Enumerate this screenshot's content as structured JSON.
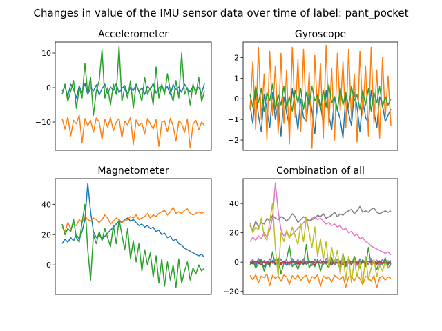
{
  "figure": {
    "title": "Changes in value of the IMU sensor data over time of label: pant_pocket"
  },
  "palette": [
    "#1f77b4",
    "#ff7f0e",
    "#2ca02c",
    "#d62728",
    "#9467bd",
    "#8c564b",
    "#e377c2",
    "#7f7f7f",
    "#bcbd22"
  ],
  "chart_data": [
    {
      "type": "line",
      "title": "Accelerometer",
      "xlabel": "",
      "ylabel": "",
      "x_ticks_visible": false,
      "ylim": [
        -18.2,
        13.2
      ],
      "yticks": [
        10,
        0,
        -10
      ],
      "grid": false,
      "series": [
        {
          "color": "#1f77b4",
          "values": [
            -1,
            0.2,
            -2.5,
            1,
            -0.5,
            -3,
            0.5,
            -1.5,
            1.2,
            -2,
            0,
            -1,
            0.8,
            -2.2,
            -0.3,
            1,
            -1.8,
            0.2,
            -0.8,
            1.1,
            -1.5,
            -0.2,
            0.6,
            -1.9,
            0.1,
            -0.9,
            1,
            -1.2,
            0,
            -2,
            0.4,
            -0.5,
            1.2,
            -1.6,
            -0.1,
            0.7,
            -1,
            0.3,
            -2.1,
            0.9,
            -0.6,
            0.2,
            -1.4,
            1,
            -0.4,
            -1.2,
            0.5,
            -0.8,
            0.1,
            -1.7,
            1.2
          ]
        },
        {
          "color": "#ff7f0e",
          "values": [
            -9,
            -12,
            -8.5,
            -14,
            -9.5,
            -10.5,
            -8,
            -16,
            -9,
            -11,
            -9.5,
            -13,
            -8.8,
            -10,
            -15,
            -9.2,
            -11.5,
            -8.7,
            -12.5,
            -10,
            -9,
            -14.5,
            -9.8,
            -10.8,
            -8.6,
            -16.5,
            -9.4,
            -11,
            -10.2,
            -13.5,
            -9,
            -10.5,
            -12,
            -9.3,
            -17,
            -10,
            -9.6,
            -12.8,
            -8.9,
            -11.2,
            -15.5,
            -9.7,
            -10.4,
            -13,
            -9.1,
            -17.5,
            -10.6,
            -9.5,
            -12.2,
            -10,
            -11
          ]
        },
        {
          "color": "#2ca02c",
          "values": [
            -2,
            1,
            -4,
            -1,
            2,
            -6,
            0,
            -3,
            7,
            -2,
            3,
            -8,
            -1,
            2,
            11,
            -3,
            0,
            -5,
            1,
            -2,
            12,
            -4,
            0,
            -3,
            2,
            -6,
            1,
            -1,
            -4,
            3,
            -2,
            0,
            -5,
            6,
            -3,
            1,
            -2,
            4,
            -1,
            -4,
            2,
            -3,
            10,
            -2,
            0,
            -5,
            1,
            -2,
            3,
            -4,
            -1
          ]
        }
      ]
    },
    {
      "type": "line",
      "title": "Gyroscope",
      "xlabel": "",
      "ylabel": "",
      "x_ticks_visible": false,
      "ylim": [
        -2.5,
        2.75
      ],
      "yticks": [
        2,
        1,
        0,
        -1,
        -2
      ],
      "grid": false,
      "series": [
        {
          "color": "#1f77b4",
          "values": [
            -0.3,
            -1.2,
            0.4,
            -0.8,
            -1.6,
            0.2,
            -0.5,
            -1.4,
            0.3,
            -1,
            -0.2,
            -1.8,
            0.1,
            -0.7,
            -1.3,
            0.5,
            -0.4,
            -1.5,
            0,
            -0.9,
            -1.1,
            0.3,
            -0.6,
            -1.7,
            0.2,
            -0.3,
            -1.2,
            0.4,
            -0.8,
            -1.5,
            0.1,
            -0.5,
            -1,
            -1.9,
            0.2,
            -0.7,
            -1.3,
            0.3,
            -0.4,
            -1.6,
            0,
            -0.9,
            -1.2,
            0.4,
            -0.6,
            -1.4,
            0.1,
            -0.3,
            -1.1,
            -0.8,
            -0.5
          ]
        },
        {
          "color": "#ff7f0e",
          "values": [
            -0.5,
            1.8,
            -1.5,
            2.5,
            -1,
            1.2,
            -2,
            2.3,
            -0.8,
            1.6,
            -1.7,
            2.2,
            -1.2,
            1.4,
            -2.2,
            2.5,
            -0.9,
            1.9,
            -1.6,
            2.4,
            -1.1,
            1.3,
            -2.4,
            2.1,
            -0.7,
            1.7,
            -1.9,
            2.6,
            -1.3,
            1.5,
            -2,
            2.2,
            -0.6,
            1.8,
            -1.4,
            2.4,
            -1,
            1.2,
            -2.1,
            2.3,
            -0.8,
            1.6,
            -1.8,
            2.5,
            -1.2,
            1.4,
            -1.9,
            2,
            -0.9,
            1.1,
            -1.3
          ]
        },
        {
          "color": "#2ca02c",
          "values": [
            0.2,
            -0.4,
            0.6,
            -0.2,
            0.5,
            -0.6,
            0.3,
            -0.1,
            0.7,
            -0.5,
            0.2,
            -0.3,
            0.6,
            -0.4,
            0.1,
            -0.6,
            0.4,
            -0.2,
            0.5,
            -0.5,
            0.3,
            -0.3,
            0.6,
            -0.1,
            0.2,
            -0.5,
            0.4,
            -0.4,
            0.7,
            -0.2,
            0.1,
            -0.6,
            0.5,
            -0.3,
            0.3,
            -0.4,
            0.6,
            -0.1,
            0.2,
            -0.5,
            0.4,
            -0.3,
            0.5,
            -0.6,
            0.3,
            -0.2,
            0.6,
            -0.4,
            0.1,
            -0.3,
            0
          ]
        }
      ]
    },
    {
      "type": "line",
      "title": "Magnetometer",
      "xlabel": "",
      "ylabel": "",
      "x_ticks_visible": false,
      "ylim": [
        -19.5,
        57
      ],
      "yticks": [
        40,
        20,
        0
      ],
      "grid": false,
      "series": [
        {
          "color": "#1f77b4",
          "values": [
            14,
            17,
            15,
            18,
            16,
            20,
            17,
            22,
            30,
            54,
            35,
            22,
            18,
            20,
            17,
            19,
            21,
            23,
            25,
            27,
            29,
            28,
            30,
            31,
            29,
            30,
            28,
            26,
            27,
            25,
            26,
            24,
            25,
            22,
            23,
            20,
            21,
            18,
            19,
            16,
            17,
            14,
            13,
            11,
            10,
            9,
            8,
            7,
            6,
            7,
            5
          ]
        },
        {
          "color": "#ff7f0e",
          "values": [
            25,
            22,
            28,
            24,
            27,
            26,
            30,
            28,
            32,
            30,
            29,
            31,
            30,
            28,
            30,
            33,
            31,
            27,
            29,
            31,
            30,
            28,
            29,
            30,
            32,
            31,
            33,
            30,
            31,
            32,
            34,
            31,
            33,
            32,
            34,
            35,
            36,
            33,
            35,
            38,
            34,
            35,
            34,
            36,
            37,
            34,
            33,
            34,
            35,
            34,
            35
          ]
        },
        {
          "color": "#2ca02c",
          "values": [
            27,
            20,
            24,
            22,
            30,
            18,
            15,
            28,
            40,
            10,
            -10,
            20,
            14,
            22,
            16,
            24,
            18,
            12,
            26,
            14,
            30,
            20,
            10,
            24,
            4,
            16,
            2,
            14,
            -4,
            10,
            0,
            8,
            -8,
            6,
            -12,
            4,
            -14,
            2,
            -10,
            0,
            -15,
            4,
            -12,
            -4,
            2,
            -10,
            -2,
            -6,
            0,
            -4,
            -2
          ]
        }
      ]
    },
    {
      "type": "line",
      "title": "Combination of all",
      "xlabel": "",
      "ylabel": "",
      "x_ticks_visible": false,
      "ylim": [
        -22,
        57
      ],
      "yticks": [
        40,
        20,
        0,
        -20
      ],
      "grid": false,
      "series": [
        {
          "color": "#1f77b4",
          "values": [
            -1,
            0.2,
            -2.5,
            1,
            -0.5,
            -3,
            0.5,
            -1.5,
            1.2,
            -2,
            0,
            -1,
            0.8,
            -2.2,
            -0.3,
            1,
            -1.8,
            0.2,
            -0.8,
            1.1,
            -1.5,
            -0.2,
            0.6,
            -1.9,
            0.1,
            -0.9,
            1,
            -1.2,
            0,
            -2,
            0.4,
            -0.5,
            1.2,
            -1.6,
            -0.1,
            0.7,
            -1,
            0.3,
            -2.1,
            0.9,
            -0.6,
            0.2,
            -1.4,
            1,
            -0.4,
            -1.2,
            0.5,
            -0.8,
            0.1,
            -1.7,
            1.2
          ]
        },
        {
          "color": "#ff7f0e",
          "values": [
            -9,
            -12,
            -8.5,
            -14,
            -9.5,
            -10.5,
            -8,
            -16,
            -9,
            -11,
            -9.5,
            -13,
            -8.8,
            -10,
            -15,
            -9.2,
            -11.5,
            -8.7,
            -12.5,
            -10,
            -9,
            -14.5,
            -9.8,
            -10.8,
            -8.6,
            -16.5,
            -9.4,
            -11,
            -10.2,
            -13.5,
            -9,
            -10.5,
            -12,
            -9.3,
            -17,
            -10,
            -9.6,
            -12.8,
            -8.9,
            -11.2,
            -15.5,
            -9.7,
            -10.4,
            -13,
            -9.1,
            -17.5,
            -10.6,
            -9.5,
            -12.2,
            -10,
            -11
          ]
        },
        {
          "color": "#2ca02c",
          "values": [
            -2,
            1,
            -4,
            -1,
            2,
            -6,
            0,
            -3,
            7,
            -2,
            3,
            -8,
            -1,
            2,
            11,
            -3,
            0,
            -5,
            1,
            -2,
            12,
            -4,
            0,
            -3,
            2,
            -6,
            1,
            -1,
            -4,
            3,
            -2,
            0,
            -5,
            6,
            -3,
            1,
            -2,
            4,
            -1,
            -4,
            2,
            -3,
            10,
            -2,
            0,
            -5,
            1,
            -2,
            3,
            -4,
            -1
          ]
        },
        {
          "color": "#d62728",
          "values": [
            -0.3,
            -1.2,
            0.4,
            -0.8,
            -1.6,
            0.2,
            -0.5,
            -1.4,
            0.3,
            -1,
            -0.2,
            -1.8,
            0.1,
            -0.7,
            -1.3,
            0.5,
            -0.4,
            -1.5,
            0,
            -0.9,
            -1.1,
            0.3,
            -0.6,
            -1.7,
            0.2,
            -0.3,
            -1.2,
            0.4,
            -0.8,
            -1.5,
            0.1,
            -0.5,
            -1,
            -1.9,
            0.2,
            -0.7,
            -1.3,
            0.3,
            -0.4,
            -1.6,
            0,
            -0.9,
            -1.2,
            0.4,
            -0.6,
            -1.4,
            0.1,
            -0.3,
            -1.1,
            -0.8,
            -0.5
          ]
        },
        {
          "color": "#9467bd",
          "values": [
            -0.5,
            1.8,
            -1.5,
            2.5,
            -1,
            1.2,
            -2,
            2.3,
            -0.8,
            1.6,
            -1.7,
            2.2,
            -1.2,
            1.4,
            -2.2,
            2.5,
            -0.9,
            1.9,
            -1.6,
            2.4,
            -1.1,
            1.3,
            -2.4,
            2.1,
            -0.7,
            1.7,
            -1.9,
            2.6,
            -1.3,
            1.5,
            -2,
            2.2,
            -0.6,
            1.8,
            -1.4,
            2.4,
            -1,
            1.2,
            -2.1,
            2.3,
            -0.8,
            1.6,
            -1.8,
            2.5,
            -1.2,
            1.4,
            -1.9,
            2,
            -0.9,
            1.1,
            -1.3
          ]
        },
        {
          "color": "#8c564b",
          "values": [
            0.2,
            -0.4,
            0.6,
            -0.2,
            0.5,
            -0.6,
            0.3,
            -0.1,
            0.7,
            -0.5,
            0.2,
            -0.3,
            0.6,
            -0.4,
            0.1,
            -0.6,
            0.4,
            -0.2,
            0.5,
            -0.5,
            0.3,
            -0.3,
            0.6,
            -0.1,
            0.2,
            -0.5,
            0.4,
            -0.4,
            0.7,
            -0.2,
            0.1,
            -0.6,
            0.5,
            -0.3,
            0.3,
            -0.4,
            0.6,
            -0.1,
            0.2,
            -0.5,
            0.4,
            -0.3,
            0.5,
            -0.6,
            0.3,
            -0.2,
            0.6,
            -0.4,
            0.1,
            -0.3,
            0
          ]
        },
        {
          "color": "#e377c2",
          "values": [
            14,
            17,
            15,
            18,
            16,
            20,
            17,
            22,
            30,
            54,
            35,
            22,
            18,
            20,
            17,
            19,
            21,
            23,
            25,
            27,
            29,
            28,
            30,
            31,
            29,
            30,
            28,
            26,
            27,
            25,
            26,
            24,
            25,
            22,
            23,
            20,
            21,
            18,
            19,
            16,
            17,
            14,
            13,
            11,
            10,
            9,
            8,
            7,
            6,
            7,
            5
          ]
        },
        {
          "color": "#7f7f7f",
          "values": [
            25,
            22,
            28,
            24,
            27,
            26,
            30,
            28,
            32,
            30,
            29,
            31,
            30,
            28,
            30,
            33,
            31,
            27,
            29,
            31,
            30,
            28,
            29,
            30,
            32,
            31,
            33,
            30,
            31,
            32,
            34,
            31,
            33,
            32,
            34,
            35,
            36,
            33,
            35,
            38,
            34,
            35,
            34,
            36,
            37,
            34,
            33,
            34,
            35,
            34,
            35
          ]
        },
        {
          "color": "#bcbd22",
          "values": [
            27,
            20,
            24,
            22,
            30,
            18,
            15,
            28,
            40,
            10,
            -10,
            20,
            14,
            22,
            16,
            24,
            18,
            12,
            26,
            14,
            30,
            20,
            10,
            24,
            4,
            16,
            2,
            14,
            -4,
            10,
            0,
            8,
            -8,
            6,
            -12,
            4,
            -14,
            2,
            -10,
            0,
            -15,
            4,
            -12,
            -4,
            2,
            -10,
            -2,
            -6,
            0,
            -4,
            -2
          ]
        }
      ]
    }
  ]
}
